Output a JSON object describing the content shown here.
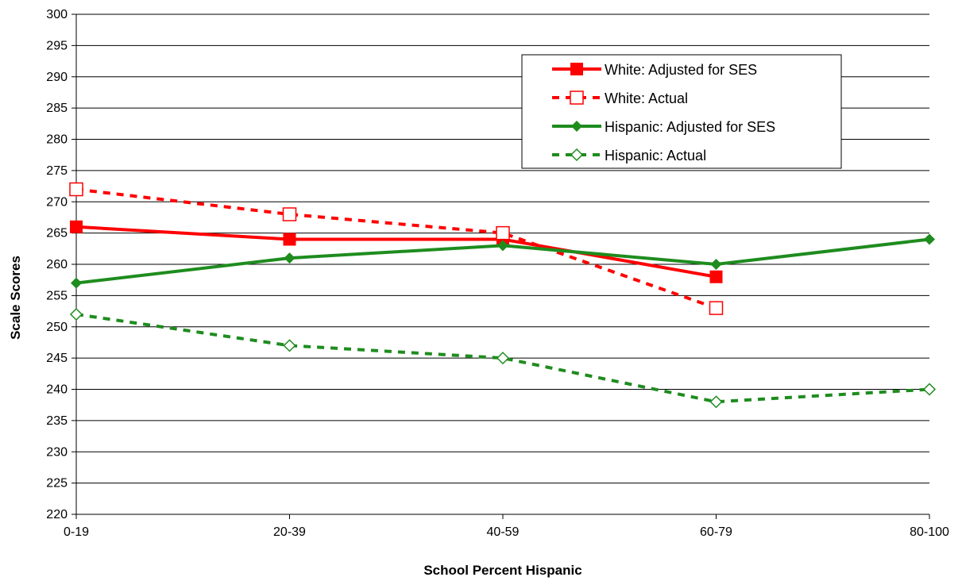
{
  "chart_data": {
    "type": "line",
    "title": "",
    "xlabel": "School Percent Hispanic",
    "ylabel": "Scale Scores",
    "categories": [
      "0-19",
      "20-39",
      "40-59",
      "60-79",
      "80-100"
    ],
    "ylim": [
      220,
      300
    ],
    "ytick_step": 5,
    "grid": "horizontal",
    "legend_position": "top-right",
    "series": [
      {
        "name": "White: Adjusted for SES",
        "values": [
          266,
          264,
          264,
          258,
          null
        ],
        "color": "#ff0000",
        "line": "solid",
        "marker": "filled-square"
      },
      {
        "name": "White: Actual",
        "values": [
          272,
          268,
          265,
          253,
          null
        ],
        "color": "#ff0000",
        "line": "dashed",
        "marker": "open-square"
      },
      {
        "name": "Hispanic: Adjusted for SES",
        "values": [
          257,
          261,
          263,
          260,
          264
        ],
        "color": "#1e8c1e",
        "line": "solid",
        "marker": "filled-diamond"
      },
      {
        "name": "Hispanic: Actual",
        "values": [
          252,
          247,
          245,
          238,
          240
        ],
        "color": "#1e8c1e",
        "line": "dashed",
        "marker": "open-diamond"
      }
    ]
  }
}
